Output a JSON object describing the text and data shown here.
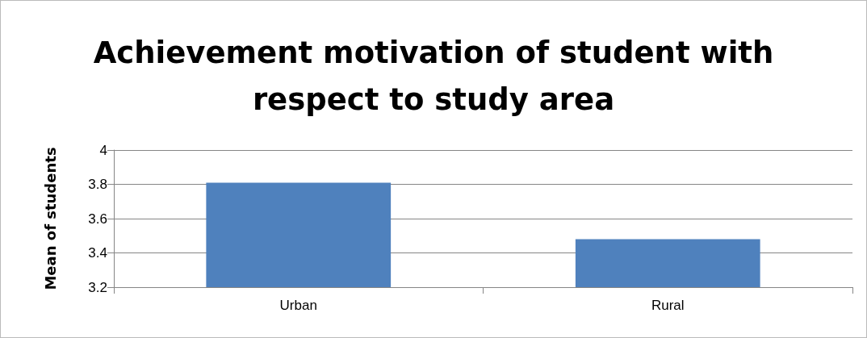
{
  "chart_data": {
    "type": "bar",
    "title": "Achievement motivation of student with\nrespect to study area",
    "ylabel": "Mean of students",
    "categories": [
      "Urban",
      "Rural"
    ],
    "series": [
      {
        "color": "#4f81bd",
        "values": [
          3.81,
          3.48
        ]
      }
    ],
    "ylim": [
      3.2,
      4
    ],
    "yticks": [
      3.2,
      3.4,
      3.6,
      3.8,
      4
    ],
    "grid": "y"
  }
}
